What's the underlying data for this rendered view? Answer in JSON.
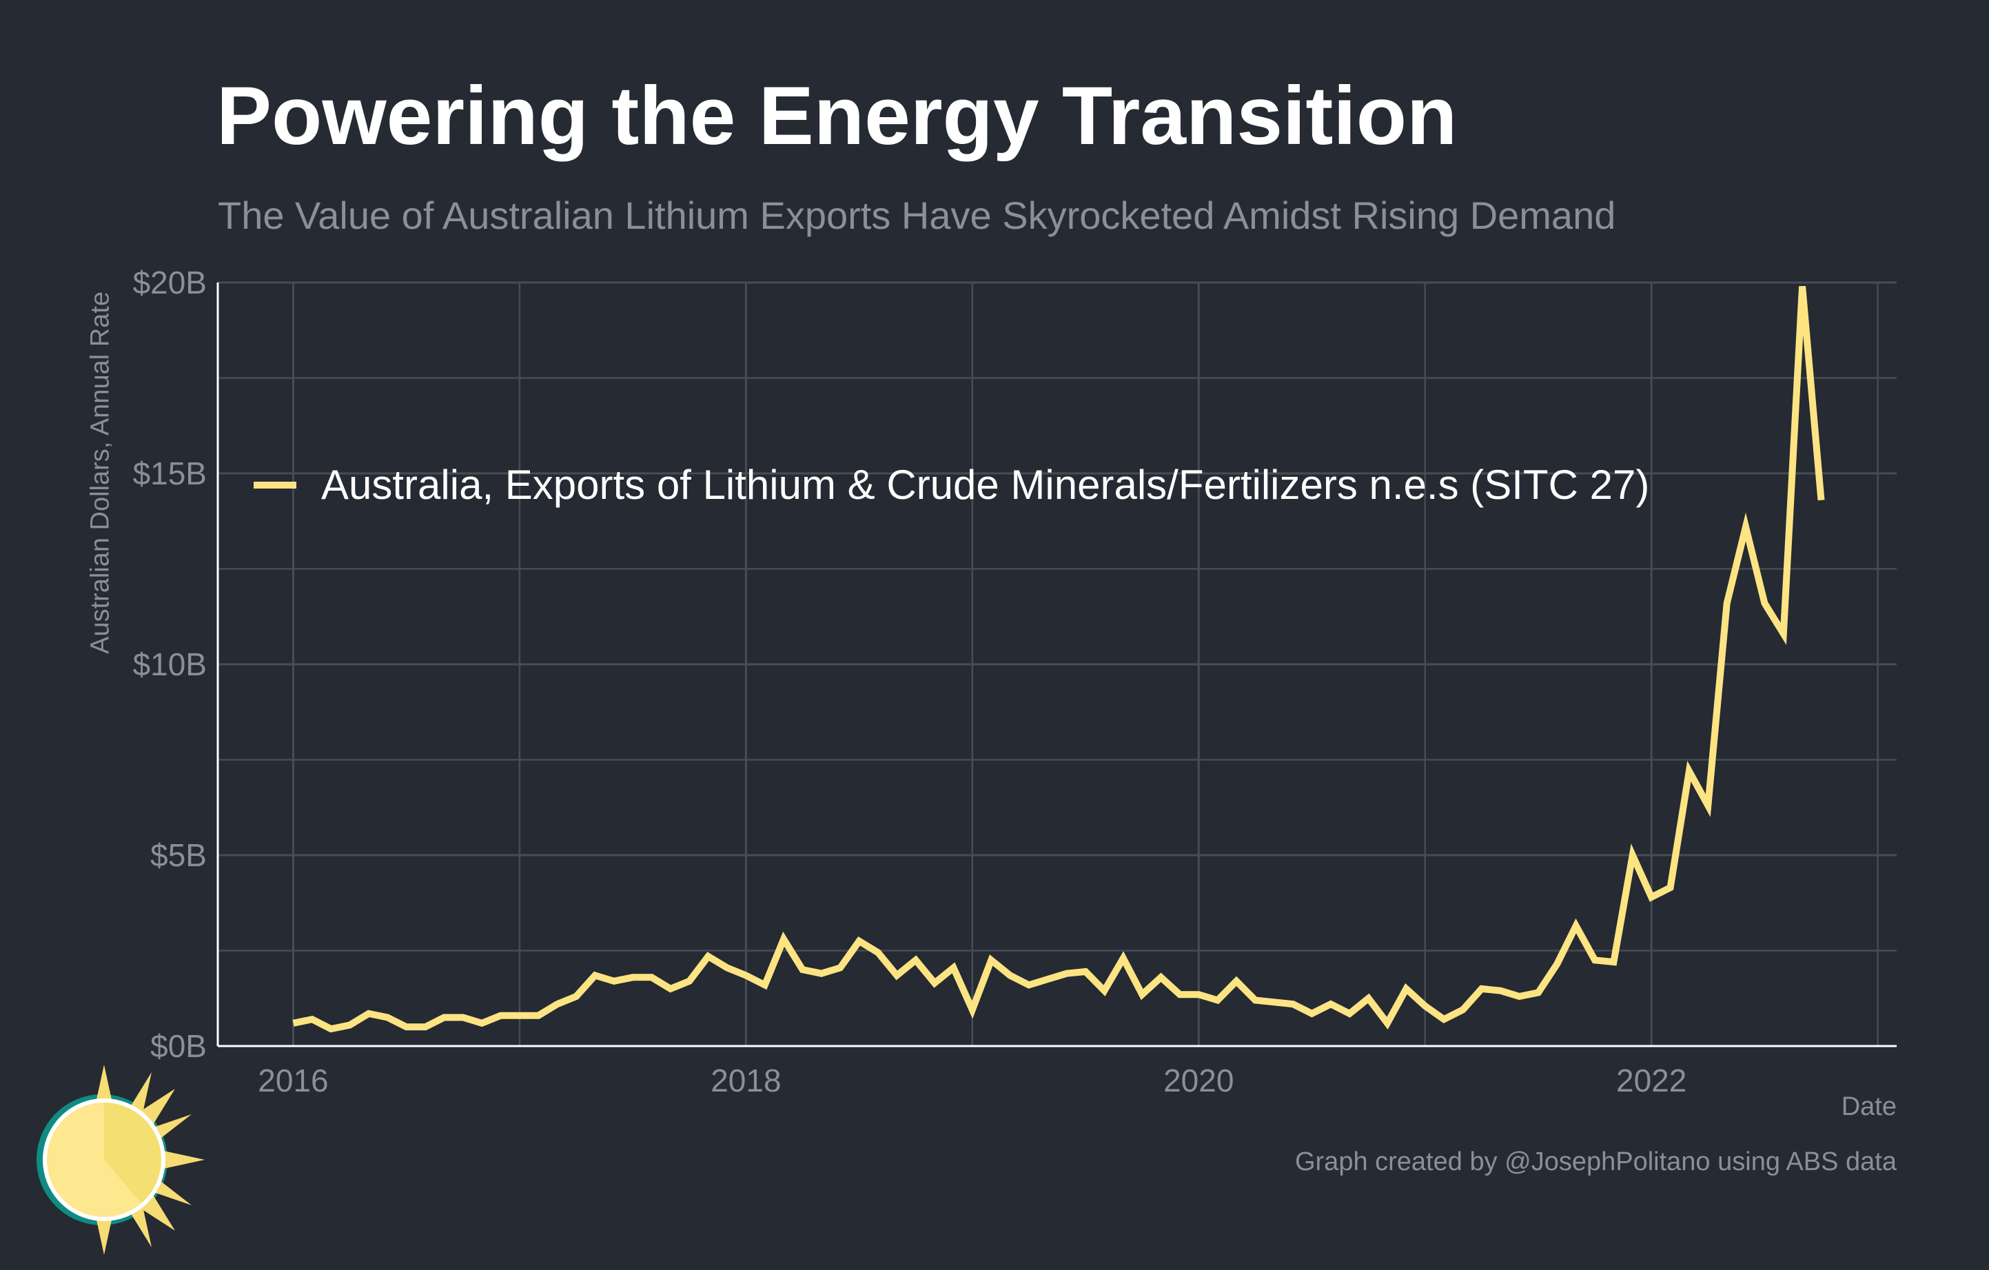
{
  "colors": {
    "background": "#252a33",
    "grid": "#474c55",
    "line": "#fde483",
    "text": "#ffffff",
    "muted": "#8a8f99"
  },
  "header": {
    "title": "Powering the Energy Transition",
    "subtitle": "The Value of Australian Lithium Exports Have Skyrocketed Amidst Rising Demand"
  },
  "footer": {
    "credit": "Graph created by @JosephPolitano using ABS data"
  },
  "logo": {
    "icon": "sun-icon"
  },
  "chart_data": {
    "type": "line",
    "xlabel": "Date",
    "ylabel": "Australian Dollars, Annual Rate",
    "ylim": [
      0,
      20
    ],
    "xlim": [
      "2015-09",
      "2023-02"
    ],
    "y_unit": "billion AUD",
    "yticks": [
      0,
      5,
      10,
      15,
      20
    ],
    "ytick_labels": [
      "$0B",
      "$5B",
      "$10B",
      "$15B",
      "$20B"
    ],
    "xticks": [
      "2016",
      "2018",
      "2020",
      "2022"
    ],
    "grid": true,
    "legend_placement": "upper-left inside",
    "series": [
      {
        "name": "Australia, Exports of Lithium & Crude Minerals/Fertilizers n.e.s (SITC 27)",
        "color": "#fde483",
        "x": [
          "2016-01",
          "2016-02",
          "2016-03",
          "2016-04",
          "2016-05",
          "2016-06",
          "2016-07",
          "2016-08",
          "2016-09",
          "2016-10",
          "2016-11",
          "2016-12",
          "2017-01",
          "2017-02",
          "2017-03",
          "2017-04",
          "2017-05",
          "2017-06",
          "2017-07",
          "2017-08",
          "2017-09",
          "2017-10",
          "2017-11",
          "2017-12",
          "2018-01",
          "2018-02",
          "2018-03",
          "2018-04",
          "2018-05",
          "2018-06",
          "2018-07",
          "2018-08",
          "2018-09",
          "2018-10",
          "2018-11",
          "2018-12",
          "2019-01",
          "2019-02",
          "2019-03",
          "2019-04",
          "2019-05",
          "2019-06",
          "2019-07",
          "2019-08",
          "2019-09",
          "2019-10",
          "2019-11",
          "2019-12",
          "2020-01",
          "2020-02",
          "2020-03",
          "2020-04",
          "2020-05",
          "2020-06",
          "2020-07",
          "2020-08",
          "2020-09",
          "2020-10",
          "2020-11",
          "2020-12",
          "2021-01",
          "2021-02",
          "2021-03",
          "2021-04",
          "2021-05",
          "2021-06",
          "2021-07",
          "2021-08",
          "2021-09",
          "2021-10",
          "2021-11",
          "2021-12",
          "2022-01",
          "2022-02",
          "2022-03",
          "2022-04",
          "2022-05",
          "2022-06",
          "2022-07",
          "2022-08",
          "2022-09",
          "2022-10"
        ],
        "values": [
          0.6,
          0.7,
          0.45,
          0.55,
          0.85,
          0.75,
          0.5,
          0.5,
          0.75,
          0.75,
          0.6,
          0.8,
          0.8,
          0.8,
          1.1,
          1.3,
          1.85,
          1.7,
          1.8,
          1.8,
          1.5,
          1.7,
          2.35,
          2.05,
          1.85,
          1.6,
          2.8,
          2.0,
          1.9,
          2.05,
          2.75,
          2.45,
          1.85,
          2.25,
          1.65,
          2.05,
          0.95,
          2.25,
          1.85,
          1.6,
          1.75,
          1.9,
          1.95,
          1.45,
          2.3,
          1.35,
          1.8,
          1.35,
          1.35,
          1.2,
          1.7,
          1.2,
          1.15,
          1.1,
          0.85,
          1.1,
          0.85,
          1.25,
          0.6,
          1.5,
          1.05,
          0.7,
          0.95,
          1.5,
          1.45,
          1.3,
          1.4,
          2.15,
          3.15,
          2.25,
          2.2,
          5.0,
          3.9,
          4.15,
          7.2,
          6.3,
          11.6,
          13.6,
          11.6,
          10.8,
          19.9,
          14.3
        ]
      }
    ]
  }
}
